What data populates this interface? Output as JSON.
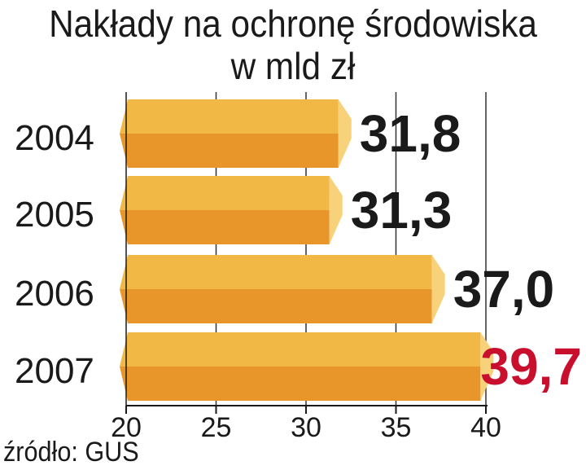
{
  "chart_data": {
    "type": "bar",
    "orientation": "horizontal",
    "title": "Nakłady na ochronę środowiska",
    "subtitle": "w mld zł",
    "categories": [
      "2004",
      "2005",
      "2006",
      "2007"
    ],
    "values": [
      31.8,
      31.3,
      37.0,
      39.7
    ],
    "value_labels": [
      "31,8",
      "31,3",
      "37,0",
      "39,7"
    ],
    "highlight_index": 3,
    "xlim": [
      20,
      40
    ],
    "x_ticks": [
      "20",
      "25",
      "30",
      "35",
      "40"
    ],
    "grid": true,
    "colors": {
      "bar_top": "#f2b845",
      "bar_bottom": "#e8962a",
      "bar_end": "#f7d27a",
      "label": "#1a1a1a",
      "highlight_label": "#c8102e",
      "axis": "#1a1a1a"
    }
  },
  "source": "źródło: GUS"
}
